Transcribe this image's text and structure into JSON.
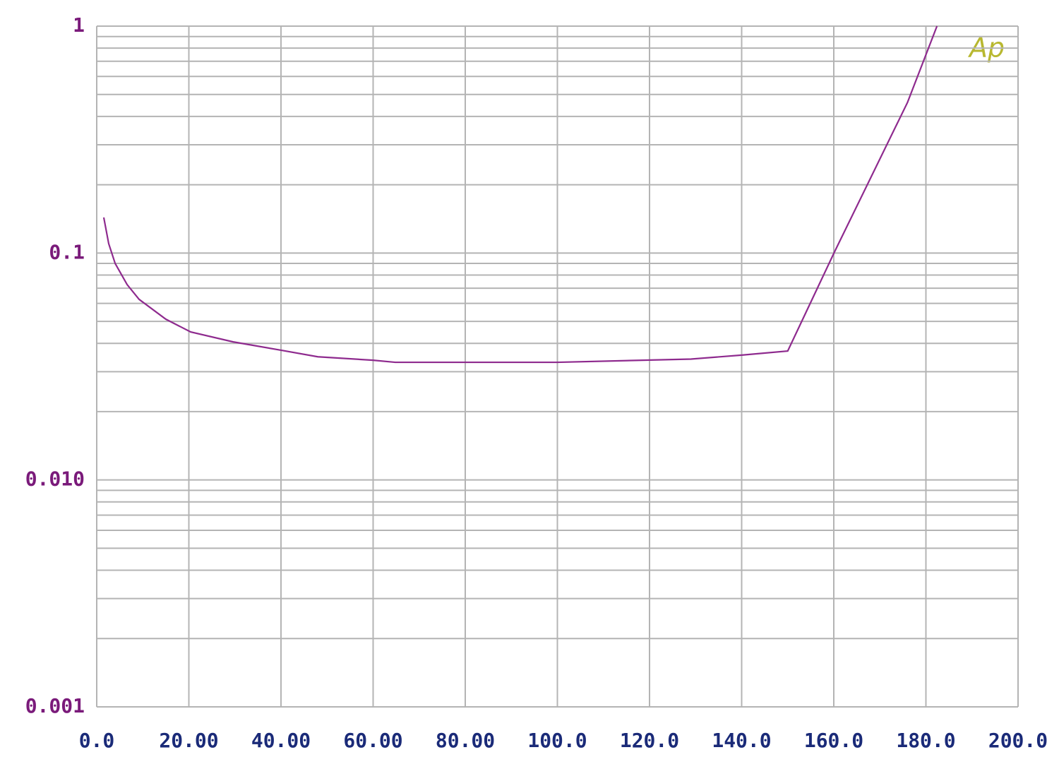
{
  "chart_data": {
    "type": "line",
    "log_y": true,
    "grid": true,
    "annotation": "Ap",
    "x": [
      1.53,
      2.6,
      4.0,
      6.6,
      9.2,
      15,
      20.4,
      29.6,
      40,
      48,
      60,
      64.8,
      100,
      118.5,
      129,
      140,
      150,
      160.2,
      176,
      182.4
    ],
    "series": [
      {
        "color": "#8e2a8e",
        "values": [
          0.1435,
          0.11,
          0.09,
          0.0726,
          0.0625,
          0.0511,
          0.0449,
          0.0406,
          0.0373,
          0.0349,
          0.0337,
          0.033,
          0.033,
          0.0337,
          0.0341,
          0.0355,
          0.037,
          0.1016,
          0.461,
          1.0
        ]
      }
    ],
    "xlim": [
      0,
      200
    ],
    "xticks": [
      {
        "value": 0,
        "label": "0.0"
      },
      {
        "value": 20,
        "label": "20.00"
      },
      {
        "value": 40,
        "label": "40.00"
      },
      {
        "value": 60,
        "label": "60.00"
      },
      {
        "value": 80,
        "label": "80.00"
      },
      {
        "value": 100,
        "label": "100.0"
      },
      {
        "value": 120,
        "label": "120.0"
      },
      {
        "value": 140,
        "label": "140.0"
      },
      {
        "value": 160,
        "label": "160.0"
      },
      {
        "value": 180,
        "label": "180.0"
      },
      {
        "value": 200,
        "label": "200.0"
      }
    ],
    "ylim": [
      0.001,
      1
    ],
    "yticks": [
      1,
      0.1,
      {
        "value": 0.01,
        "label": "0.010"
      },
      0.001
    ]
  }
}
